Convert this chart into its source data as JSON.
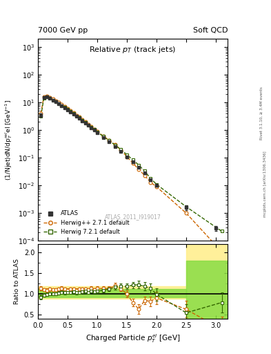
{
  "title_left": "7000 GeV pp",
  "title_right": "Soft QCD",
  "plot_title": "Relative $p_{T}$ (track jets)",
  "ylabel_main": "(1/Njet)dN/dp$^{rel}_{T}$el [GeV$^{-1}$]",
  "ylabel_ratio": "Ratio to ATLAS",
  "xlabel": "Charged Particle $p^{el}_{T}$ [GeV]",
  "watermark": "ATLAS_2011_I919017",
  "right_label1": "Rivet 3.1.10, ≥ 3.4M events",
  "right_label2": "mcplots.cern.ch [arXiv:1306.3436]",
  "atlas_x": [
    0.05,
    0.1,
    0.15,
    0.2,
    0.25,
    0.3,
    0.35,
    0.4,
    0.45,
    0.5,
    0.55,
    0.6,
    0.65,
    0.7,
    0.75,
    0.8,
    0.85,
    0.9,
    0.95,
    1.0,
    1.1,
    1.2,
    1.3,
    1.4,
    1.5,
    1.6,
    1.7,
    1.8,
    1.9,
    2.0,
    2.5,
    3.0
  ],
  "atlas_y": [
    3.5,
    15.0,
    16.0,
    14.0,
    12.0,
    10.5,
    9.0,
    7.5,
    6.5,
    5.5,
    4.5,
    3.8,
    3.2,
    2.7,
    2.2,
    1.8,
    1.5,
    1.2,
    1.0,
    0.8,
    0.55,
    0.38,
    0.25,
    0.17,
    0.11,
    0.07,
    0.045,
    0.028,
    0.016,
    0.01,
    0.0016,
    0.00028
  ],
  "atlas_yerr": [
    0.5,
    1.0,
    1.0,
    0.8,
    0.7,
    0.6,
    0.5,
    0.4,
    0.35,
    0.3,
    0.25,
    0.2,
    0.18,
    0.15,
    0.12,
    0.1,
    0.08,
    0.07,
    0.06,
    0.05,
    0.03,
    0.02,
    0.015,
    0.01,
    0.007,
    0.005,
    0.003,
    0.002,
    0.0015,
    0.001,
    0.0003,
    5e-05
  ],
  "herwig1_x": [
    0.05,
    0.1,
    0.15,
    0.2,
    0.25,
    0.3,
    0.35,
    0.4,
    0.45,
    0.5,
    0.55,
    0.6,
    0.65,
    0.7,
    0.75,
    0.8,
    0.85,
    0.9,
    0.95,
    1.0,
    1.1,
    1.2,
    1.3,
    1.4,
    1.5,
    1.6,
    1.7,
    1.8,
    1.9,
    2.0,
    2.5,
    3.1
  ],
  "herwig1_y": [
    4.0,
    16.5,
    17.5,
    15.5,
    13.2,
    11.5,
    10.0,
    8.5,
    7.2,
    6.0,
    5.0,
    4.2,
    3.5,
    3.0,
    2.45,
    2.0,
    1.65,
    1.35,
    1.1,
    0.9,
    0.62,
    0.43,
    0.3,
    0.19,
    0.11,
    0.065,
    0.038,
    0.023,
    0.013,
    0.009,
    0.001,
    4e-05
  ],
  "herwig2_x": [
    0.05,
    0.1,
    0.15,
    0.2,
    0.25,
    0.3,
    0.35,
    0.4,
    0.45,
    0.5,
    0.55,
    0.6,
    0.65,
    0.7,
    0.75,
    0.8,
    0.85,
    0.9,
    0.95,
    1.0,
    1.1,
    1.2,
    1.3,
    1.4,
    1.5,
    1.6,
    1.7,
    1.8,
    1.9,
    2.0,
    2.5,
    3.1
  ],
  "herwig2_y": [
    3.2,
    14.5,
    15.8,
    14.0,
    12.0,
    10.5,
    9.2,
    7.8,
    6.7,
    5.7,
    4.7,
    4.0,
    3.3,
    2.8,
    2.3,
    1.9,
    1.56,
    1.28,
    1.05,
    0.85,
    0.6,
    0.42,
    0.29,
    0.2,
    0.13,
    0.085,
    0.055,
    0.033,
    0.018,
    0.011,
    0.0017,
    0.00022
  ],
  "ratio1_x": [
    0.05,
    0.1,
    0.15,
    0.2,
    0.25,
    0.3,
    0.35,
    0.4,
    0.45,
    0.5,
    0.55,
    0.6,
    0.65,
    0.7,
    0.75,
    0.8,
    0.85,
    0.9,
    0.95,
    1.0,
    1.1,
    1.2,
    1.3,
    1.4,
    1.5,
    1.6,
    1.7,
    1.8,
    1.9,
    2.0,
    2.5,
    3.1
  ],
  "ratio1_y": [
    1.14,
    1.1,
    1.09,
    1.11,
    1.1,
    1.1,
    1.11,
    1.13,
    1.11,
    1.09,
    1.11,
    1.11,
    1.09,
    1.11,
    1.11,
    1.11,
    1.1,
    1.13,
    1.1,
    1.13,
    1.13,
    1.13,
    1.2,
    1.12,
    1.0,
    0.79,
    0.63,
    0.84,
    0.82,
    0.9,
    0.625,
    0.14
  ],
  "ratio1_yerr": [
    0.05,
    0.04,
    0.04,
    0.04,
    0.04,
    0.04,
    0.04,
    0.05,
    0.04,
    0.04,
    0.04,
    0.04,
    0.04,
    0.04,
    0.04,
    0.04,
    0.04,
    0.05,
    0.04,
    0.05,
    0.05,
    0.05,
    0.07,
    0.06,
    0.08,
    0.1,
    0.12,
    0.1,
    0.12,
    0.15,
    0.2,
    0.3
  ],
  "ratio2_x": [
    0.05,
    0.1,
    0.15,
    0.2,
    0.25,
    0.3,
    0.35,
    0.4,
    0.45,
    0.5,
    0.55,
    0.6,
    0.65,
    0.7,
    0.75,
    0.8,
    0.85,
    0.9,
    0.95,
    1.0,
    1.1,
    1.2,
    1.3,
    1.4,
    1.5,
    1.6,
    1.7,
    1.8,
    1.9,
    2.0,
    2.5,
    3.1
  ],
  "ratio2_y": [
    0.91,
    0.97,
    0.99,
    1.0,
    1.0,
    1.0,
    1.02,
    1.04,
    1.03,
    1.04,
    1.04,
    1.05,
    1.03,
    1.04,
    1.05,
    1.06,
    1.04,
    1.07,
    1.05,
    1.06,
    1.09,
    1.11,
    1.16,
    1.18,
    1.18,
    1.21,
    1.22,
    1.18,
    1.13,
    0.99,
    0.54,
    0.79
  ],
  "ratio2_yerr": [
    0.05,
    0.04,
    0.04,
    0.04,
    0.04,
    0.04,
    0.04,
    0.04,
    0.04,
    0.04,
    0.04,
    0.04,
    0.04,
    0.04,
    0.04,
    0.04,
    0.04,
    0.04,
    0.04,
    0.04,
    0.05,
    0.05,
    0.06,
    0.07,
    0.07,
    0.08,
    0.09,
    0.1,
    0.12,
    0.15,
    0.2,
    0.25
  ],
  "yellow_band_edges": [
    0.0,
    2.0,
    2.5,
    3.2
  ],
  "yellow_band_lo": [
    0.88,
    0.88,
    0.4,
    0.4
  ],
  "yellow_band_hi": [
    1.18,
    1.18,
    2.2,
    2.2
  ],
  "green_band_edges": [
    0.0,
    2.0,
    2.5,
    3.2
  ],
  "green_band_lo": [
    0.92,
    0.92,
    0.4,
    0.4
  ],
  "green_band_hi": [
    1.12,
    1.12,
    1.8,
    1.8
  ],
  "color_atlas": "#333333",
  "color_herwig1": "#cc6600",
  "color_herwig2": "#336600",
  "color_band_yellow": "#ffee88",
  "color_band_green": "#88dd44",
  "xlim": [
    0,
    3.2
  ],
  "ylim_main": [
    0.0001,
    2000
  ],
  "ylim_ratio": [
    0.4,
    2.2
  ],
  "legend_atlas": "ATLAS",
  "legend_herwig1": "Herwig++ 2.7.1 default",
  "legend_herwig2": "Herwig 7.2.1 default"
}
